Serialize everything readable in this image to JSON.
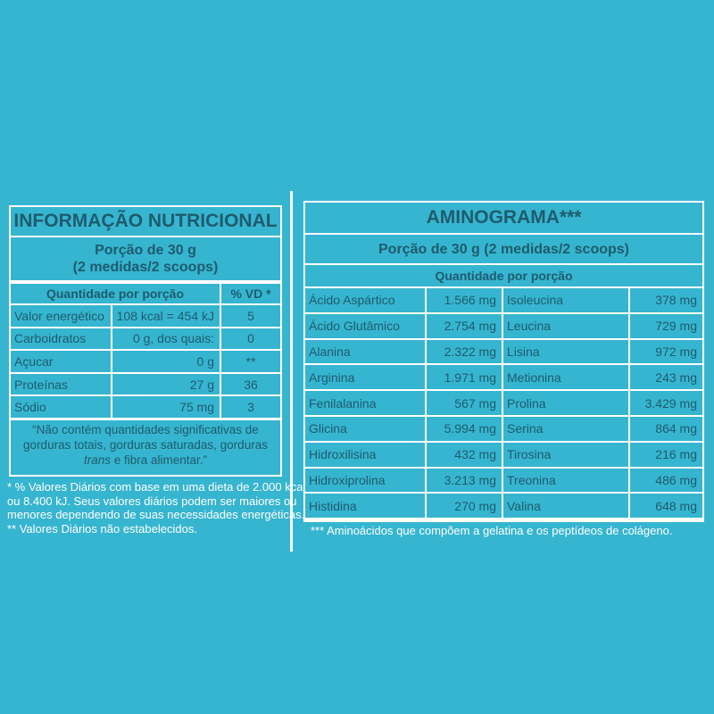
{
  "nutrition": {
    "title": "INFORMAÇÃO NUTRICIONAL",
    "portion_line1": "Porção de 30 g",
    "portion_line2": "(2 medidas/2 scoops)",
    "header_quantity": "Quantidade por porção",
    "header_vd": "% VD *",
    "rows": [
      {
        "name": "Valor energético",
        "amount": "108 kcal = 454 kJ",
        "vd": "5"
      },
      {
        "name": "Carboidratos",
        "amount": "0 g, dos quais:",
        "vd": "0"
      },
      {
        "name": "Açucar",
        "amount": "0 g",
        "vd": "**"
      },
      {
        "name": "Proteínas",
        "amount": "27 g",
        "vd": "36"
      },
      {
        "name": "Sódio",
        "amount": "75 mg",
        "vd": "3"
      }
    ],
    "note_line1": "“Não contém quantidades significativas de",
    "note_line2": "gorduras totais, gorduras saturadas, gorduras",
    "note_line3_italic": "trans",
    "note_line3_rest": " e fibra alimentar.”",
    "footnotes": [
      "* % Valores Diários com base em uma dieta de 2.000 kcal",
      "ou 8.400 kJ. Seus valores diários podem ser maiores ou",
      "menores dependendo de suas necessidades energéticas.",
      "** Valores Diários não estabelecidos."
    ]
  },
  "aminogram": {
    "title": "AMINOGRAMA***",
    "portion": "Porção de 30 g (2 medidas/2 scoops)",
    "header_quantity": "Quantidade por porção",
    "left_rows": [
      {
        "name": "Ácido Aspártico",
        "amount": "1.566 mg"
      },
      {
        "name": "Ácido Glutâmico",
        "amount": "2.754 mg"
      },
      {
        "name": "Alanina",
        "amount": "2.322 mg"
      },
      {
        "name": "Arginina",
        "amount": "1.971 mg"
      },
      {
        "name": "Fenilalanina",
        "amount": "567 mg"
      },
      {
        "name": "Glicina",
        "amount": "5.994 mg"
      },
      {
        "name": "Hidroxilisina",
        "amount": "432 mg"
      },
      {
        "name": "Hidroxiprolina",
        "amount": "3.213 mg"
      },
      {
        "name": "Histidina",
        "amount": "270 mg"
      }
    ],
    "right_rows": [
      {
        "name": "Isoleucina",
        "amount": "378 mg"
      },
      {
        "name": "Leucina",
        "amount": "729 mg"
      },
      {
        "name": "Lisina",
        "amount": "972 mg"
      },
      {
        "name": "Metionina",
        "amount": "243 mg"
      },
      {
        "name": "Prolina",
        "amount": "3.429 mg"
      },
      {
        "name": "Serina",
        "amount": "864 mg"
      },
      {
        "name": "Tirosina",
        "amount": "216 mg"
      },
      {
        "name": "Treonina",
        "amount": "486 mg"
      },
      {
        "name": "Valina",
        "amount": "648 mg"
      }
    ],
    "footnote": "*** Aminoácidos que compõem a gelatina e os peptídeos de colágeno."
  }
}
